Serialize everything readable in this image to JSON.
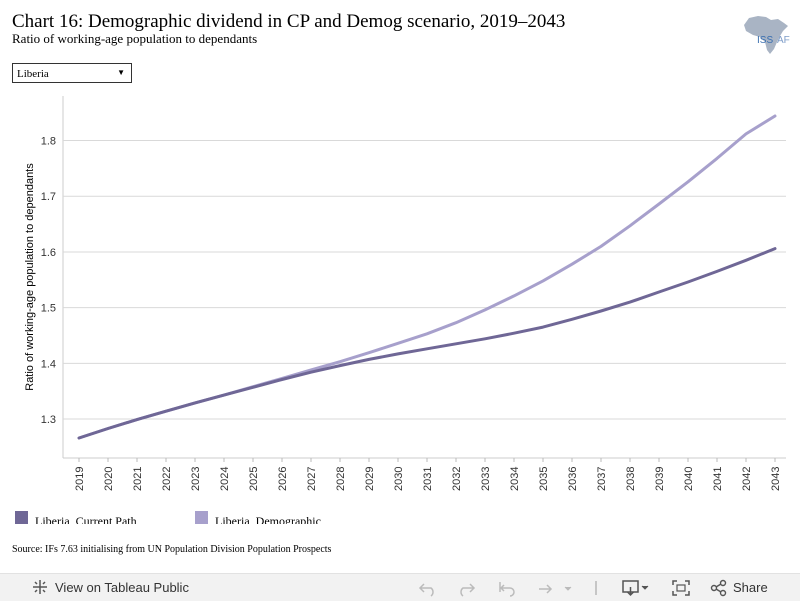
{
  "header": {
    "title": "Chart 16: Demographic dividend in CP and Demog scenario, 2019–2043",
    "subtitle": "Ratio of working-age population to dependants"
  },
  "logo": {
    "text": "ISS",
    "text2": "AFRICA"
  },
  "filter": {
    "selected": "Liberia"
  },
  "chart_data": {
    "type": "line",
    "x": [
      2019,
      2020,
      2021,
      2022,
      2023,
      2024,
      2025,
      2026,
      2027,
      2028,
      2029,
      2030,
      2031,
      2032,
      2033,
      2034,
      2035,
      2036,
      2037,
      2038,
      2039,
      2040,
      2041,
      2042,
      2043
    ],
    "x_tick_labels": [
      "2019",
      "2020",
      "2021",
      "2022",
      "2023",
      "2024",
      "2025",
      "2026",
      "2027",
      "2028",
      "2029",
      "2030",
      "2031",
      "2032",
      "2033",
      "2034",
      "2035",
      "2036",
      "2037",
      "2038",
      "2039",
      "2040",
      "2041",
      "2042",
      "2043"
    ],
    "y_tick_labels": [
      "1.3",
      "1.4",
      "1.5",
      "1.6",
      "1.7",
      "1.8"
    ],
    "y_ticks": [
      1.3,
      1.4,
      1.5,
      1.6,
      1.7,
      1.8
    ],
    "ylim": [
      1.23,
      1.88
    ],
    "ylabel": "Ratio of working-age population to dependants",
    "grid": true,
    "legend_position": "bottom-left",
    "series": [
      {
        "name": "Liberia, Current Path",
        "color": "#6f6796",
        "values": [
          1.266,
          1.283,
          1.299,
          1.314,
          1.329,
          1.343,
          1.357,
          1.371,
          1.384,
          1.396,
          1.407,
          1.417,
          1.426,
          1.435,
          1.444,
          1.454,
          1.465,
          1.479,
          1.494,
          1.51,
          1.528,
          1.546,
          1.565,
          1.585,
          1.606
        ]
      },
      {
        "name": "Liberia, Demographic",
        "color": "#a7a0cc",
        "values": [
          1.266,
          1.283,
          1.299,
          1.314,
          1.329,
          1.343,
          1.358,
          1.373,
          1.388,
          1.403,
          1.419,
          1.436,
          1.453,
          1.473,
          1.496,
          1.521,
          1.548,
          1.578,
          1.61,
          1.647,
          1.686,
          1.726,
          1.768,
          1.812,
          1.844
        ]
      }
    ]
  },
  "source": "Source: IFs 7.63 initialising from UN Population Division Population Prospects",
  "footer": {
    "view_label": "View on Tableau Public",
    "share_label": "Share"
  },
  "icons": {
    "tableau": "tableau-logo-icon",
    "undo": "undo-icon",
    "redo": "redo-icon",
    "revert": "revert-icon",
    "refresh": "refresh-icon",
    "download": "download-icon",
    "fullscreen": "fullscreen-icon",
    "share": "share-icon"
  }
}
